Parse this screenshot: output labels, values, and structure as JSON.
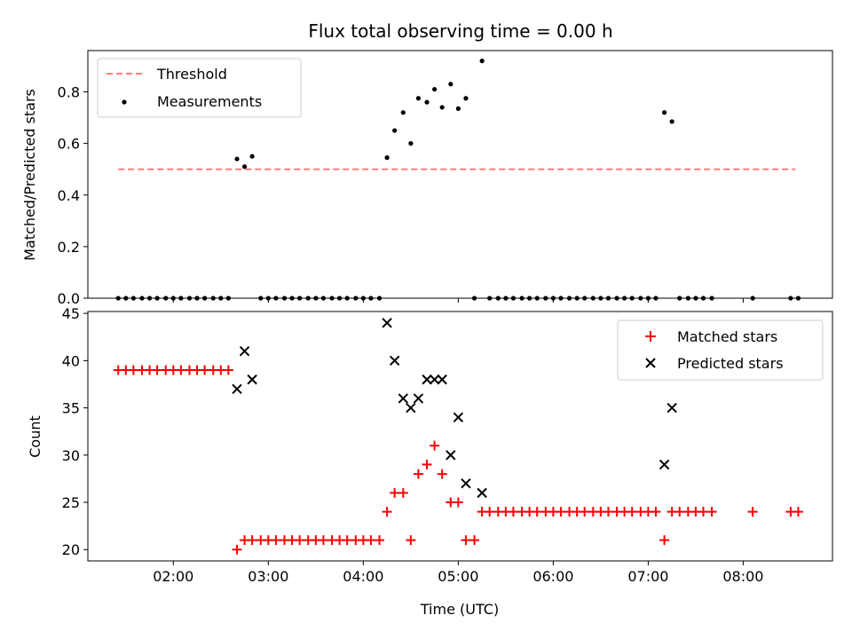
{
  "chart_data": [
    {
      "type": "scatter",
      "title": "Flux total observing time = 0.00 h",
      "xlabel": "",
      "ylabel": "Matched/Predicted stars",
      "xlim": [
        1.1,
        8.94
      ],
      "ylim": [
        0,
        0.96
      ],
      "yticks": [
        0.0,
        0.2,
        0.4,
        0.6,
        0.8
      ],
      "yticklabels": [
        "0.0",
        "0.2",
        "0.4",
        "0.6",
        "0.8"
      ],
      "xticks": [
        2,
        3,
        4,
        5,
        6,
        7,
        8
      ],
      "xticklabels": [
        "",
        "",
        "",
        "",
        "",
        "",
        ""
      ],
      "legend": "top-left",
      "series": [
        {
          "name": "Threshold",
          "kind": "dashed-line",
          "color": "#ff7f7f",
          "x": [
            1.42,
            8.55
          ],
          "y": [
            0.5,
            0.5
          ]
        },
        {
          "name": "Measurements",
          "kind": "dot",
          "color": "#000000",
          "x": [
            1.42,
            1.5,
            1.58,
            1.67,
            1.75,
            1.83,
            1.92,
            2.0,
            2.08,
            2.17,
            2.25,
            2.33,
            2.42,
            2.5,
            2.58,
            2.67,
            2.75,
            2.83,
            2.92,
            3.0,
            3.08,
            3.17,
            3.25,
            3.33,
            3.42,
            3.5,
            3.58,
            3.67,
            3.75,
            3.83,
            3.92,
            4.0,
            4.08,
            4.17,
            4.25,
            4.33,
            4.42,
            4.5,
            4.58,
            4.67,
            4.75,
            4.83,
            4.92,
            5.0,
            5.08,
            5.17,
            5.25,
            5.33,
            5.42,
            5.5,
            5.58,
            5.67,
            5.75,
            5.83,
            5.92,
            6.0,
            6.08,
            6.17,
            6.25,
            6.33,
            6.42,
            6.5,
            6.58,
            6.67,
            6.75,
            6.83,
            6.92,
            7.0,
            7.08,
            7.17,
            7.25,
            7.33,
            7.42,
            7.5,
            7.58,
            7.67,
            8.1,
            8.5,
            8.58
          ],
          "y": [
            0,
            0,
            0,
            0,
            0,
            0,
            0,
            0,
            0,
            0,
            0,
            0,
            0,
            0,
            0,
            0.54,
            0.51,
            0.55,
            0,
            0,
            0,
            0,
            0,
            0,
            0,
            0,
            0,
            0,
            0,
            0,
            0,
            0,
            0,
            0,
            0.545,
            0.65,
            0.72,
            0.6,
            0.775,
            0.76,
            0.81,
            0.74,
            0.83,
            0.735,
            0.775,
            0,
            0.92,
            0,
            0,
            0,
            0,
            0,
            0,
            0,
            0,
            0,
            0,
            0,
            0,
            0,
            0,
            0,
            0,
            0,
            0,
            0,
            0,
            0,
            0,
            0.72,
            0.685,
            0,
            0,
            0,
            0,
            0,
            0,
            0,
            0
          ]
        }
      ]
    },
    {
      "type": "scatter",
      "title": "",
      "xlabel": "Time (UTC)",
      "ylabel": "Count",
      "xlim": [
        1.1,
        8.94
      ],
      "ylim": [
        18.8,
        45.2
      ],
      "yticks": [
        20,
        25,
        30,
        35,
        40,
        45
      ],
      "yticklabels": [
        "20",
        "25",
        "30",
        "35",
        "40",
        "45"
      ],
      "xticks": [
        2,
        3,
        4,
        5,
        6,
        7,
        8
      ],
      "xticklabels": [
        "02:00",
        "03:00",
        "04:00",
        "05:00",
        "06:00",
        "07:00",
        "08:00"
      ],
      "legend": "top-right",
      "series": [
        {
          "name": "Matched stars",
          "kind": "plus",
          "color": "#ff0000",
          "x": [
            1.42,
            1.5,
            1.58,
            1.67,
            1.75,
            1.83,
            1.92,
            2.0,
            2.08,
            2.17,
            2.25,
            2.33,
            2.42,
            2.5,
            2.58,
            2.67,
            2.75,
            2.83,
            2.92,
            3.0,
            3.08,
            3.17,
            3.25,
            3.33,
            3.42,
            3.5,
            3.58,
            3.67,
            3.75,
            3.83,
            3.92,
            4.0,
            4.08,
            4.17,
            4.25,
            4.33,
            4.42,
            4.5,
            4.58,
            4.67,
            4.75,
            4.83,
            4.92,
            5.0,
            5.08,
            5.17,
            5.25,
            5.33,
            5.42,
            5.5,
            5.58,
            5.67,
            5.75,
            5.83,
            5.92,
            6.0,
            6.08,
            6.17,
            6.25,
            6.33,
            6.42,
            6.5,
            6.58,
            6.67,
            6.75,
            6.83,
            6.92,
            7.0,
            7.08,
            7.17,
            7.25,
            7.33,
            7.42,
            7.5,
            7.58,
            7.67,
            8.1,
            8.5,
            8.58
          ],
          "y": [
            39,
            39,
            39,
            39,
            39,
            39,
            39,
            39,
            39,
            39,
            39,
            39,
            39,
            39,
            39,
            20,
            21,
            21,
            21,
            21,
            21,
            21,
            21,
            21,
            21,
            21,
            21,
            21,
            21,
            21,
            21,
            21,
            21,
            21,
            24,
            26,
            26,
            21,
            28,
            29,
            31,
            28,
            25,
            25,
            21,
            21,
            24,
            24,
            24,
            24,
            24,
            24,
            24,
            24,
            24,
            24,
            24,
            24,
            24,
            24,
            24,
            24,
            24,
            24,
            24,
            24,
            24,
            24,
            24,
            21,
            24,
            24,
            24,
            24,
            24,
            24,
            24,
            24,
            24
          ]
        },
        {
          "name": "Predicted stars",
          "kind": "x",
          "color": "#000000",
          "x": [
            2.67,
            2.75,
            2.83,
            4.25,
            4.33,
            4.42,
            4.5,
            4.58,
            4.67,
            4.75,
            4.83,
            4.92,
            5.0,
            5.08,
            5.25,
            7.17,
            7.25
          ],
          "y": [
            37,
            41,
            38,
            44,
            40,
            36,
            35,
            36,
            38,
            38,
            38,
            30,
            34,
            27,
            26,
            29,
            35
          ]
        }
      ]
    }
  ]
}
